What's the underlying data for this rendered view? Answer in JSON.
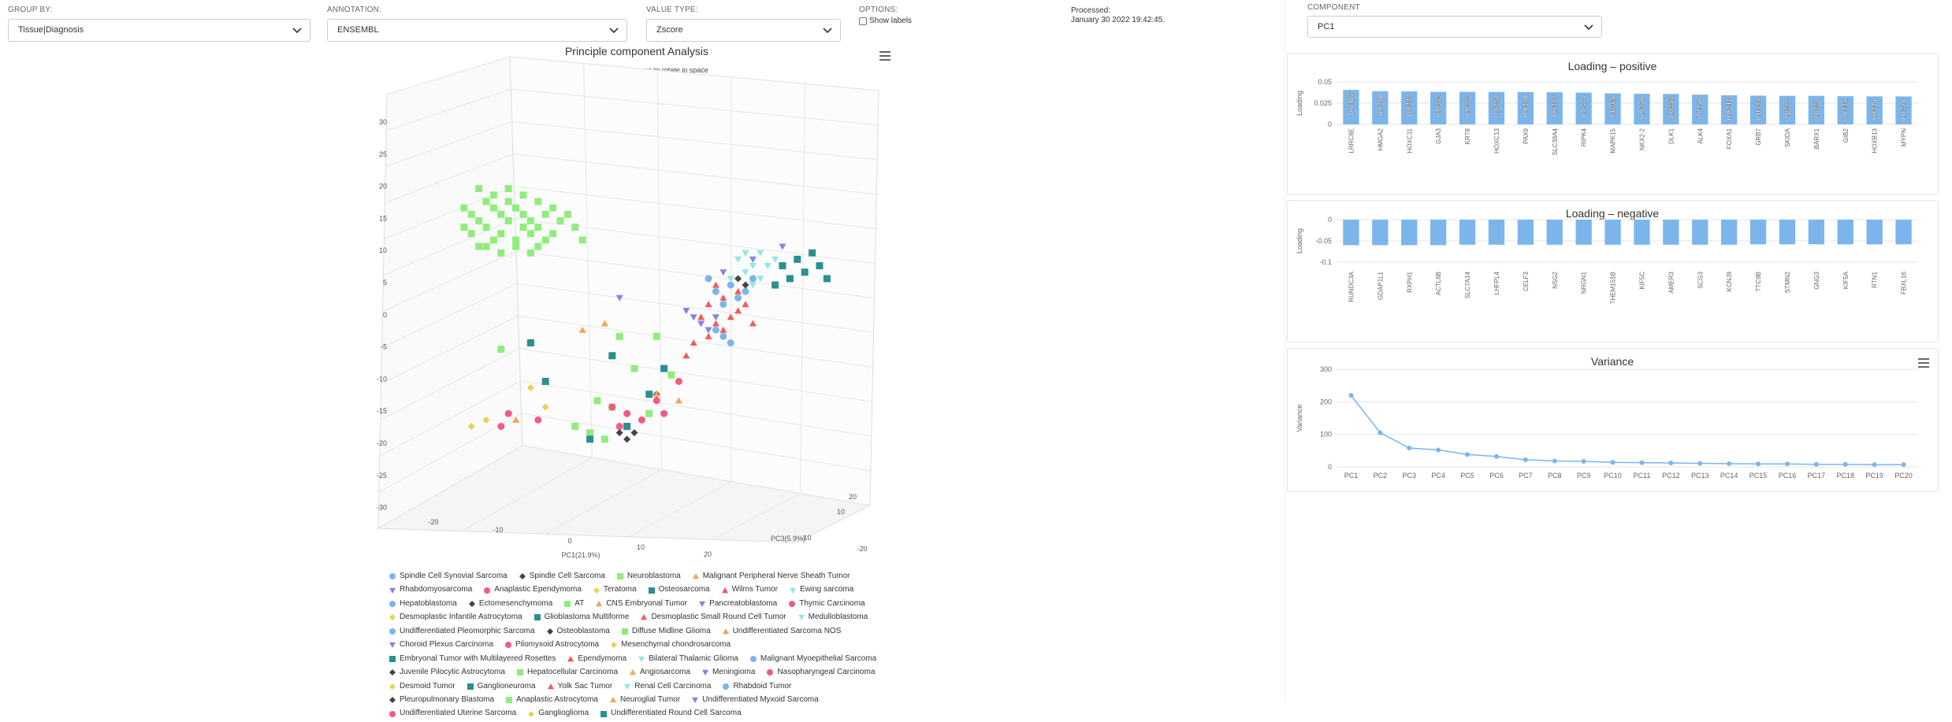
{
  "controls": {
    "group_by": {
      "label": "GROUP BY:",
      "value": "Tissue|Diagnosis"
    },
    "annotation": {
      "label": "ANNOTATION:",
      "value": "ENSEMBL"
    },
    "value_type": {
      "label": "VALUE TYPE:",
      "value": "Zscore"
    },
    "options": {
      "label": "OPTIONS:",
      "show_labels": "Show labels",
      "show_labels_checked": false
    },
    "processed": {
      "label": "Processed:",
      "value": "January 30 2022 19:42:45."
    },
    "component": {
      "label": "COMPONENT",
      "value": "PC1"
    }
  },
  "pca": {
    "title": "Principle component Analysis",
    "subtitle": "Click and drag the plot area to rotate in space",
    "xlabel": "PC1(21.9%)",
    "zlabel": "PC3(5.9%)",
    "y_ticks": [
      "30",
      "25",
      "20",
      "15",
      "10",
      "5",
      "0",
      "-5",
      "-10",
      "-15",
      "-20",
      "-25",
      "-30"
    ],
    "x_ticks": [
      "-20",
      "-10",
      "0",
      "10",
      "20"
    ],
    "z_ticks": [
      "20",
      "10",
      "-10",
      "-20"
    ]
  },
  "legend": [
    {
      "name": "Spindle Cell Synovial Sarcoma",
      "color": "#7cb5ec",
      "shape": "circle"
    },
    {
      "name": "Spindle Cell Sarcoma",
      "color": "#434348",
      "shape": "diamond"
    },
    {
      "name": "Neuroblastoma",
      "color": "#90ed7d",
      "shape": "square"
    },
    {
      "name": "Malignant Peripheral Nerve Sheath Tumor",
      "color": "#f7a35c",
      "shape": "triangle"
    },
    {
      "name": "Rhabdomyosarcoma",
      "color": "#8085e9",
      "shape": "triangle-down"
    },
    {
      "name": "Anaplastic Ependymoma",
      "color": "#f15c80",
      "shape": "circle"
    },
    {
      "name": "Teratoma",
      "color": "#e4d354",
      "shape": "diamond"
    },
    {
      "name": "Osteosarcoma",
      "color": "#2b908f",
      "shape": "square"
    },
    {
      "name": "Wilms Tumor",
      "color": "#f45b5b",
      "shape": "triangle"
    },
    {
      "name": "Ewing sarcoma",
      "color": "#91e8e1",
      "shape": "triangle-down"
    },
    {
      "name": "Hepatoblastoma",
      "color": "#7cb5ec",
      "shape": "circle"
    },
    {
      "name": "Ectomesenchymoma",
      "color": "#434348",
      "shape": "diamond"
    },
    {
      "name": "AT",
      "color": "#90ed7d",
      "shape": "square"
    },
    {
      "name": "CNS Embryonal Tumor",
      "color": "#f7a35c",
      "shape": "triangle"
    },
    {
      "name": "Pancreatoblastoma",
      "color": "#8085e9",
      "shape": "triangle-down"
    },
    {
      "name": "Thymic Carcinoma",
      "color": "#f15c80",
      "shape": "circle"
    },
    {
      "name": "Desmoplastic Infantile Astrocytoma",
      "color": "#e4d354",
      "shape": "diamond"
    },
    {
      "name": "Glioblastoma Multiforme",
      "color": "#2b908f",
      "shape": "square"
    },
    {
      "name": "Desmoplastic Small Round Cell Tumor",
      "color": "#f45b5b",
      "shape": "triangle"
    },
    {
      "name": "Medulloblastoma",
      "color": "#91e8e1",
      "shape": "triangle-down"
    },
    {
      "name": "Undifferentiated Pleomorphic Sarcoma",
      "color": "#7cb5ec",
      "shape": "circle"
    },
    {
      "name": "Osteoblastoma",
      "color": "#434348",
      "shape": "diamond"
    },
    {
      "name": "Diffuse Midline Glioma",
      "color": "#90ed7d",
      "shape": "square"
    },
    {
      "name": "Undifferentiated Sarcoma NOS",
      "color": "#f7a35c",
      "shape": "triangle"
    },
    {
      "name": "Choroid Plexus Carcinoma",
      "color": "#8085e9",
      "shape": "triangle-down"
    },
    {
      "name": "Pilomyxoid Astrocytoma",
      "color": "#f15c80",
      "shape": "circle"
    },
    {
      "name": "Mesenchymal chondrosarcoma",
      "color": "#e4d354",
      "shape": "diamond"
    },
    {
      "name": "Embryonal Tumor with Multilayered Rosettes",
      "color": "#2b908f",
      "shape": "square"
    },
    {
      "name": "Ependymoma",
      "color": "#f45b5b",
      "shape": "triangle"
    },
    {
      "name": "Bilateral Thalamic Glioma",
      "color": "#91e8e1",
      "shape": "triangle-down"
    },
    {
      "name": "Malignant Myoepithelial Sarcoma",
      "color": "#7cb5ec",
      "shape": "circle"
    },
    {
      "name": "Juvenile Pilocytic Astrocytoma",
      "color": "#434348",
      "shape": "diamond"
    },
    {
      "name": "Hepatocellular Carcinoma",
      "color": "#90ed7d",
      "shape": "square"
    },
    {
      "name": "Angiosarcoma",
      "color": "#f7a35c",
      "shape": "triangle"
    },
    {
      "name": "Meningioma",
      "color": "#8085e9",
      "shape": "triangle-down"
    },
    {
      "name": "Nasopharyngeal Carcinoma",
      "color": "#f15c80",
      "shape": "circle"
    },
    {
      "name": "Desmoid Tumor",
      "color": "#e4d354",
      "shape": "diamond"
    },
    {
      "name": "Ganglioneuroma",
      "color": "#2b908f",
      "shape": "square"
    },
    {
      "name": "Yolk Sac Tumor",
      "color": "#f45b5b",
      "shape": "triangle"
    },
    {
      "name": "Renal Cell Carcinoma",
      "color": "#91e8e1",
      "shape": "triangle-down"
    },
    {
      "name": "Rhabdoid Tumor",
      "color": "#7cb5ec",
      "shape": "circle"
    },
    {
      "name": "Pleuropulmonary Blastoma",
      "color": "#434348",
      "shape": "diamond"
    },
    {
      "name": "Anaplastic Astrocytoma",
      "color": "#90ed7d",
      "shape": "square"
    },
    {
      "name": "Neuroglial Tumor",
      "color": "#f7a35c",
      "shape": "triangle"
    },
    {
      "name": "Undifferentiated Myxoid Sarcoma",
      "color": "#8085e9",
      "shape": "triangle-down"
    },
    {
      "name": "Undifferentiated Uterine Sarcoma",
      "color": "#f15c80",
      "shape": "circle"
    },
    {
      "name": "Ganglioglioma",
      "color": "#e4d354",
      "shape": "diamond"
    },
    {
      "name": "Undifferentiated Round Cell Sarcoma",
      "color": "#2b908f",
      "shape": "square"
    }
  ],
  "chart_data": [
    {
      "type": "bar",
      "title": "Loading – positive",
      "ylabel": "Loading",
      "ylim": [
        0,
        0.05
      ],
      "yticks": [
        "0.05",
        "0.025",
        "0"
      ],
      "color": "#7cb5ec",
      "categories": [
        "LRRC8E",
        "HMGA2",
        "HOXC11",
        "GJA3",
        "KRT8",
        "HOXC13",
        "PAX9",
        "SLC38A4",
        "RIPK4",
        "MAPK15",
        "NKX2-2",
        "DLK1",
        "ALK4",
        "FOXA1",
        "GRB7",
        "SKIDA",
        "BARX1",
        "GIB2",
        "HOXB13",
        "MYPN"
      ],
      "values": [
        0.0406,
        0.039,
        0.0388,
        0.0383,
        0.0383,
        0.0382,
        0.038,
        0.0378,
        0.0374,
        0.0365,
        0.036,
        0.0358,
        0.035,
        0.0343,
        0.0338,
        0.0336,
        0.0336,
        0.0332,
        0.033,
        0.0329
      ],
      "data_labels": [
        "0.0406",
        "0.0390",
        "0.0388",
        "0.0383",
        "0.0383",
        "0.0382",
        "0.0380",
        "0.0378",
        "0.0374",
        "0.0365",
        "0.0360",
        "0.0358",
        "0.0350",
        "0.0343",
        "0.0338",
        "0.0336",
        "0.0336",
        "0.0332",
        "0.0330",
        "0.0329"
      ]
    },
    {
      "type": "bar",
      "title": "Loading – negative",
      "ylabel": "Loading",
      "ylim": [
        -0.1,
        0
      ],
      "yticks": [
        "0",
        "-0.05",
        "-0.1"
      ],
      "color": "#7cb5ec",
      "categories": [
        "RUNDC3A",
        "GDAP1L1",
        "RXPH1",
        "ACTL6B",
        "SLC7A14",
        "LHFPL4",
        "CELF3",
        "NSG2",
        "NRGN1",
        "THEM151B",
        "KIF5C",
        "AMER3",
        "SCG3",
        "KCNJ9",
        "TTC9B",
        "STMN2",
        "GNG3",
        "KIF5A",
        "RTN1",
        "FBXL16"
      ],
      "values": [
        -0.06,
        -0.06,
        -0.06,
        -0.06,
        -0.059,
        -0.059,
        -0.059,
        -0.059,
        -0.059,
        -0.059,
        -0.059,
        -0.059,
        -0.059,
        -0.059,
        -0.058,
        -0.058,
        -0.058,
        -0.058,
        -0.058,
        -0.058
      ]
    },
    {
      "type": "line",
      "title": "Variance",
      "ylabel": "Variance",
      "ylim": [
        0,
        300
      ],
      "yticks": [
        "300",
        "200",
        "100",
        "0"
      ],
      "color": "#7cb5ec",
      "categories": [
        "PC1",
        "PC2",
        "PC3",
        "PC4",
        "PC5",
        "PC6",
        "PC7",
        "PC8",
        "PC9",
        "PC10",
        "PC11",
        "PC12",
        "PC13",
        "PC14",
        "PC15",
        "PC16",
        "PC17",
        "PC18",
        "PC19",
        "PC20"
      ],
      "values": [
        220,
        105,
        58,
        52,
        38,
        32,
        22,
        18,
        17,
        14,
        13,
        12,
        11,
        10,
        9,
        9,
        8,
        8,
        7,
        7
      ]
    },
    {
      "type": "scatter",
      "title": "Principle component Analysis",
      "xlabel": "PC1(21.9%)",
      "zlabel": "PC3(5.9%)",
      "xlim": [
        -25,
        25
      ],
      "ylim": [
        -30,
        30
      ],
      "zlim": [
        -20,
        20
      ],
      "series": [
        {
          "name": "Neuroblastoma",
          "color": "#90ed7d",
          "shape": "square",
          "points": [
            [
              -23,
              17
            ],
            [
              -22,
              16
            ],
            [
              -21,
              15
            ],
            [
              -20,
              18
            ],
            [
              -19,
              17
            ],
            [
              -18,
              16
            ],
            [
              -17,
              15
            ],
            [
              -16,
              17
            ],
            [
              -15,
              16
            ],
            [
              -14,
              15
            ],
            [
              -13,
              14
            ],
            [
              -22,
              13
            ],
            [
              -20,
              14
            ],
            [
              -18,
              13
            ],
            [
              -16,
              12
            ],
            [
              -14,
              13
            ],
            [
              -12,
              12
            ],
            [
              -21,
              20
            ],
            [
              -19,
              19
            ],
            [
              -17,
              20
            ],
            [
              -15,
              19
            ],
            [
              -13,
              18
            ],
            [
              -11,
              17
            ],
            [
              -20,
              11
            ],
            [
              -18,
              10
            ],
            [
              -16,
              11
            ],
            [
              -14,
              10
            ],
            [
              -10,
              15
            ],
            [
              -8,
              14
            ],
            [
              -12,
              16
            ],
            [
              -17,
              18
            ],
            [
              -15,
              14
            ],
            [
              -19,
              12
            ],
            [
              -23,
              14
            ],
            [
              -11,
              13
            ],
            [
              -9,
              16
            ],
            [
              -7,
              12
            ],
            [
              -21,
              11
            ],
            [
              -13,
              11
            ],
            [
              -2,
              -3
            ],
            [
              0,
              -8
            ],
            [
              5,
              -9
            ],
            [
              -5,
              -13
            ],
            [
              -3,
              -14
            ],
            [
              2,
              -15
            ],
            [
              -8,
              -17
            ],
            [
              -6,
              -18
            ],
            [
              -4,
              -19
            ],
            [
              3,
              -3
            ],
            [
              -18,
              -5
            ]
          ]
        },
        {
          "name": "Wilms Tumor",
          "color": "#f45b5b",
          "shape": "triangle",
          "points": [
            [
              10,
              2
            ],
            [
              12,
              3
            ],
            [
              14,
              1
            ],
            [
              11,
              -1
            ],
            [
              13,
              0
            ],
            [
              15,
              2
            ],
            [
              9,
              0
            ],
            [
              16,
              -1
            ],
            [
              12,
              -2
            ],
            [
              14,
              4
            ],
            [
              11,
              5
            ],
            [
              10,
              -3
            ],
            [
              7,
              -6
            ],
            [
              8,
              -4
            ]
          ]
        },
        {
          "name": "Ewing sarcoma",
          "color": "#91e8e1",
          "shape": "triangle-down",
          "points": [
            [
              14,
              9
            ],
            [
              16,
              8
            ],
            [
              15,
              7
            ],
            [
              17,
              10
            ],
            [
              18,
              8
            ],
            [
              13,
              6
            ],
            [
              16,
              5
            ],
            [
              19,
              9
            ],
            [
              15,
              10
            ],
            [
              17,
              6
            ]
          ]
        },
        {
          "name": "Osteosarcoma",
          "color": "#2b908f",
          "shape": "square",
          "points": [
            [
              20,
              8
            ],
            [
              22,
              9
            ],
            [
              24,
              10
            ],
            [
              21,
              6
            ],
            [
              23,
              7
            ],
            [
              25,
              8
            ],
            [
              19,
              5
            ],
            [
              26,
              6
            ],
            [
              -12,
              -10
            ],
            [
              -3,
              -6
            ],
            [
              4,
              -8
            ],
            [
              -6,
              -19
            ],
            [
              2,
              -12
            ],
            [
              -1,
              -17
            ],
            [
              -14,
              -4
            ]
          ]
        },
        {
          "name": "Hepatoblastoma",
          "color": "#7cb5ec",
          "shape": "circle",
          "points": [
            [
              11,
              4
            ],
            [
              13,
              5
            ],
            [
              12,
              2
            ],
            [
              14,
              3
            ],
            [
              10,
              6
            ],
            [
              15,
              4
            ],
            [
              12,
              -3
            ],
            [
              13,
              -4
            ],
            [
              11,
              -2
            ],
            [
              16,
              6
            ]
          ]
        },
        {
          "name": "Rhabdomyosarcoma",
          "color": "#8085e9",
          "shape": "triangle-down",
          "points": [
            [
              -2,
              3
            ],
            [
              8,
              0
            ],
            [
              9,
              -1
            ],
            [
              10,
              -2
            ],
            [
              11,
              0
            ],
            [
              12,
              7
            ],
            [
              16,
              9
            ],
            [
              20,
              11
            ],
            [
              7,
              1
            ]
          ]
        },
        {
          "name": "Anaplastic Ependymoma",
          "color": "#f15c80",
          "shape": "circle",
          "points": [
            [
              -17,
              -15
            ],
            [
              -13,
              -16
            ],
            [
              -3,
              -14
            ],
            [
              -1,
              -15
            ],
            [
              1,
              -16
            ],
            [
              3,
              -13
            ],
            [
              4,
              -15
            ],
            [
              -2,
              -17
            ],
            [
              6,
              -10
            ],
            [
              -18,
              -17
            ]
          ]
        },
        {
          "name": "Spindle Cell Sarcoma",
          "color": "#434348",
          "shape": "diamond",
          "points": [
            [
              -2,
              -18
            ],
            [
              -1,
              -19
            ],
            [
              0,
              -18
            ],
            [
              3,
              -12
            ],
            [
              14,
              6
            ],
            [
              15,
              5
            ]
          ]
        },
        {
          "name": "Teratoma",
          "color": "#e4d354",
          "shape": "diamond",
          "points": [
            [
              -22,
              -17
            ],
            [
              -20,
              -16
            ],
            [
              -14,
              -11
            ],
            [
              -12,
              -14
            ]
          ]
        },
        {
          "name": "Malignant Peripheral Nerve Sheath Tumor",
          "color": "#f7a35c",
          "shape": "triangle",
          "points": [
            [
              -7,
              -2
            ],
            [
              -4,
              -1
            ],
            [
              3,
              -12
            ],
            [
              6,
              -13
            ],
            [
              -16,
              -16
            ]
          ]
        }
      ]
    }
  ]
}
